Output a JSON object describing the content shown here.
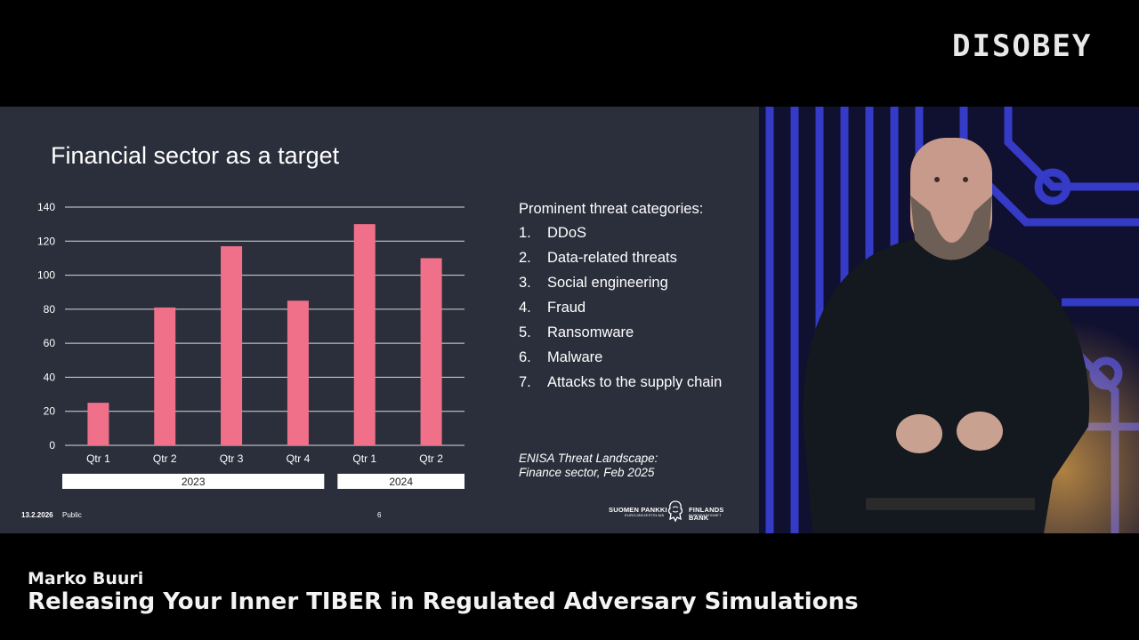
{
  "event_logo": "DISOBEY",
  "slide": {
    "title": "Financial sector as a target",
    "chart_data": {
      "type": "bar",
      "categories": [
        "Qtr 1",
        "Qtr 2",
        "Qtr 3",
        "Qtr 4",
        "Qtr 1",
        "Qtr 2"
      ],
      "groups": [
        {
          "label": "2023",
          "categories": [
            "Qtr 1",
            "Qtr 2",
            "Qtr 3",
            "Qtr 4"
          ]
        },
        {
          "label": "2024",
          "categories": [
            "Qtr 1",
            "Qtr 2"
          ]
        }
      ],
      "values": [
        25,
        81,
        117,
        85,
        130,
        110
      ],
      "ylim": [
        0,
        140
      ],
      "yticks": [
        0,
        20,
        40,
        60,
        80,
        100,
        120,
        140
      ],
      "grid": true,
      "bar_color": "#f0708a"
    },
    "threats": {
      "heading": "Prominent threat categories:",
      "items": [
        {
          "num": "1.",
          "label": "DDoS"
        },
        {
          "num": "2.",
          "label": "Data-related threats"
        },
        {
          "num": "3.",
          "label": "Social engineering"
        },
        {
          "num": "4.",
          "label": "Fraud"
        },
        {
          "num": "5.",
          "label": "Ransomware"
        },
        {
          "num": "6.",
          "label": "Malware"
        },
        {
          "num": "7.",
          "label": "Attacks to the supply chain"
        }
      ]
    },
    "source_line1": "ENISA Threat Landscape:",
    "source_line2": "Finance sector, Feb 2025",
    "footer": {
      "date": "13.2.2026",
      "classification": "Public",
      "page": "6"
    },
    "bank": {
      "name_fi": "SUOMEN PANKKI",
      "sub_fi": "EUROJÄRJESTELMÄ",
      "name_sv": "FINLANDS BANK",
      "sub_sv": "EUROSYSTEMET"
    }
  },
  "caption": {
    "speaker": "Marko Buuri",
    "talk_title": "Releasing Your Inner TIBER in Regulated Adversary Simulations"
  }
}
